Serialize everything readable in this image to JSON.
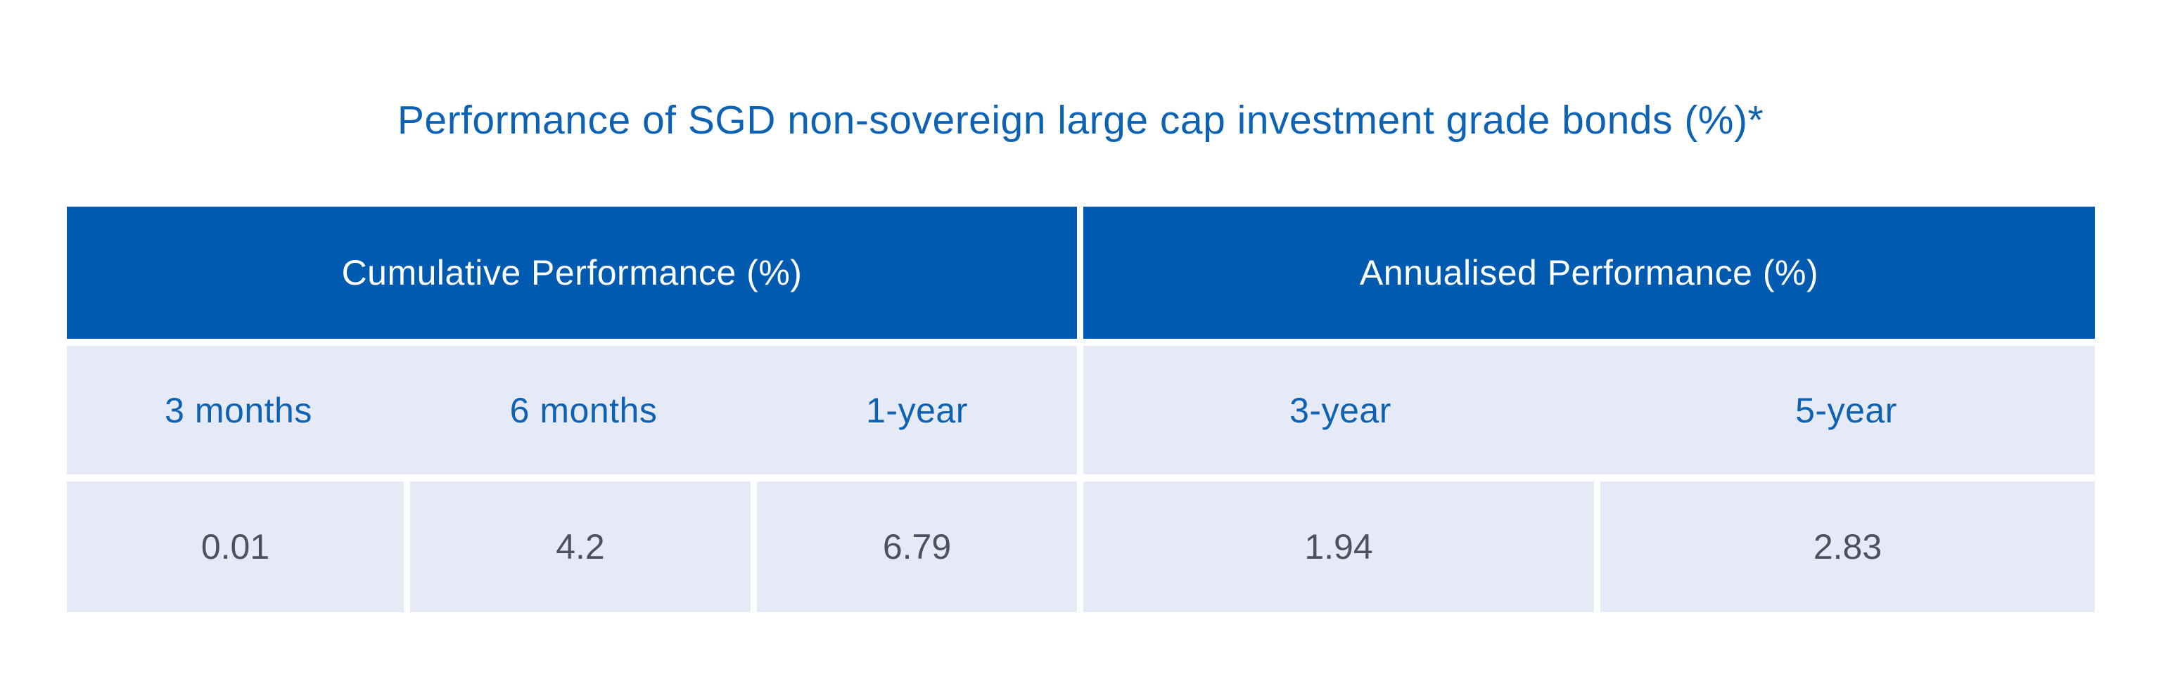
{
  "title": "Performance of SGD non-sovereign large cap investment grade bonds (%)*",
  "table": {
    "groups": [
      {
        "label": "Cumulative Performance (%)",
        "columns": [
          "3 months",
          "6 months",
          "1-year"
        ],
        "values": [
          "0.01",
          "4.2",
          "6.79"
        ]
      },
      {
        "label": "Annualised Performance (%)",
        "columns": [
          "3-year",
          "5-year"
        ],
        "values": [
          "1.94",
          "2.83"
        ]
      }
    ]
  },
  "colors": {
    "header_background": "#005bb0",
    "header_text": "#ffffff",
    "title_text": "#0d62b4",
    "subheader_text": "#0d62b4",
    "cell_background": "#e6e9f6",
    "value_text": "#4c515d",
    "page_background": "#ffffff"
  },
  "chart_data": {
    "type": "table",
    "title": "Performance of SGD non-sovereign large cap investment grade bonds (%)*",
    "column_groups": [
      {
        "label": "Cumulative Performance (%)",
        "span": 3
      },
      {
        "label": "Annualised Performance (%)",
        "span": 2
      }
    ],
    "columns": [
      "3 months",
      "6 months",
      "1-year",
      "3-year",
      "5-year"
    ],
    "values": [
      0.01,
      4.2,
      6.79,
      1.94,
      2.83
    ]
  }
}
